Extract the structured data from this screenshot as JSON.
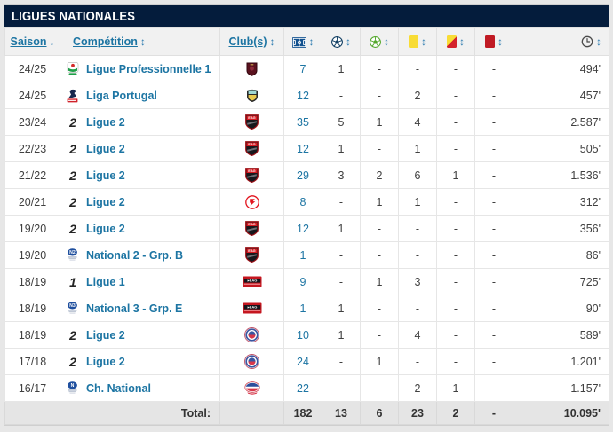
{
  "title": "LIGUES NATIONALES",
  "columns": {
    "season": {
      "label": "Saison",
      "sort": "↓"
    },
    "competition": {
      "label": "Compétition",
      "sort": "↕"
    },
    "club": {
      "label": "Club(s)",
      "sort": "↕"
    },
    "stats": [
      {
        "icon": "pitch-icon",
        "sort": "↕"
      },
      {
        "icon": "ball-navy-icon",
        "sort": "↕"
      },
      {
        "icon": "ball-green-icon",
        "sort": "↕"
      },
      {
        "icon": "yellow-card-icon",
        "sort": "↕"
      },
      {
        "icon": "yellow-red-card-icon",
        "sort": "↕"
      },
      {
        "icon": "red-card-icon",
        "sort": "↕"
      },
      {
        "icon": "clock-icon",
        "sort": "↕"
      }
    ]
  },
  "rows": [
    {
      "season": "24/25",
      "competition": "Ligue Professionnelle 1",
      "comp_logo": "ligue-professionnelle-1-logo",
      "club_crest": "club-crest-dark-red-shield",
      "matches": "7",
      "goals": "1",
      "assists": "-",
      "yellow": "-",
      "yellow_red": "-",
      "red": "-",
      "minutes": "494'"
    },
    {
      "season": "24/25",
      "competition": "Liga Portugal",
      "comp_logo": "liga-portugal-logo",
      "club_crest": "club-crest-yellow-castle",
      "matches": "12",
      "goals": "-",
      "assists": "-",
      "yellow": "2",
      "yellow_red": "-",
      "red": "-",
      "minutes": "457'"
    },
    {
      "season": "23/24",
      "competition": "Ligue 2",
      "comp_logo": "ligue-2-logo",
      "club_crest": "club-crest-eag-shield",
      "matches": "35",
      "goals": "5",
      "assists": "1",
      "yellow": "4",
      "yellow_red": "-",
      "red": "-",
      "minutes": "2.587'"
    },
    {
      "season": "22/23",
      "competition": "Ligue 2",
      "comp_logo": "ligue-2-logo",
      "club_crest": "club-crest-eag-shield",
      "matches": "12",
      "goals": "1",
      "assists": "-",
      "yellow": "1",
      "yellow_red": "-",
      "red": "-",
      "minutes": "505'"
    },
    {
      "season": "21/22",
      "competition": "Ligue 2",
      "comp_logo": "ligue-2-logo",
      "club_crest": "club-crest-eag-shield",
      "matches": "29",
      "goals": "3",
      "assists": "2",
      "yellow": "6",
      "yellow_red": "1",
      "red": "-",
      "minutes": "1.536'"
    },
    {
      "season": "20/21",
      "competition": "Ligue 2",
      "comp_logo": "ligue-2-logo",
      "club_crest": "club-crest-red-white-round",
      "matches": "8",
      "goals": "-",
      "assists": "1",
      "yellow": "1",
      "yellow_red": "-",
      "red": "-",
      "minutes": "312'"
    },
    {
      "season": "19/20",
      "competition": "Ligue 2",
      "comp_logo": "ligue-2-logo",
      "club_crest": "club-crest-eag-shield",
      "matches": "12",
      "goals": "1",
      "assists": "-",
      "yellow": "-",
      "yellow_red": "-",
      "red": "-",
      "minutes": "356'"
    },
    {
      "season": "19/20",
      "competition": "National 2 - Grp. B",
      "comp_logo": "national-2-logo",
      "club_crest": "club-crest-eag-shield",
      "matches": "1",
      "goals": "-",
      "assists": "-",
      "yellow": "-",
      "yellow_red": "-",
      "red": "-",
      "minutes": "86'"
    },
    {
      "season": "18/19",
      "competition": "Ligue 1",
      "comp_logo": "ligue-1-logo",
      "club_crest": "club-crest-eag-banner",
      "matches": "9",
      "goals": "-",
      "assists": "1",
      "yellow": "3",
      "yellow_red": "-",
      "red": "-",
      "minutes": "725'"
    },
    {
      "season": "18/19",
      "competition": "National 3 - Grp. E",
      "comp_logo": "national-3-logo",
      "club_crest": "club-crest-eag-banner",
      "matches": "1",
      "goals": "1",
      "assists": "-",
      "yellow": "-",
      "yellow_red": "-",
      "red": "-",
      "minutes": "90'"
    },
    {
      "season": "18/19",
      "competition": "Ligue 2",
      "comp_logo": "ligue-2-logo",
      "club_crest": "club-crest-blue-red-round",
      "matches": "10",
      "goals": "1",
      "assists": "-",
      "yellow": "4",
      "yellow_red": "-",
      "red": "-",
      "minutes": "589'"
    },
    {
      "season": "17/18",
      "competition": "Ligue 2",
      "comp_logo": "ligue-2-logo",
      "club_crest": "club-crest-blue-red-round",
      "matches": "24",
      "goals": "-",
      "assists": "1",
      "yellow": "-",
      "yellow_red": "-",
      "red": "-",
      "minutes": "1.201'"
    },
    {
      "season": "16/17",
      "competition": "Ch. National",
      "comp_logo": "championnat-national-logo",
      "club_crest": "club-crest-blue-red-oval",
      "matches": "22",
      "goals": "-",
      "assists": "-",
      "yellow": "2",
      "yellow_red": "1",
      "red": "-",
      "minutes": "1.157'"
    }
  ],
  "total": {
    "label": "Total:",
    "matches": "182",
    "goals": "13",
    "assists": "6",
    "yellow": "23",
    "yellow_red": "2",
    "red": "-",
    "minutes": "10.095'"
  },
  "colors": {
    "title_bar": "#041c3c",
    "link": "#1d75a3",
    "header_bg": "#f1f1f1",
    "total_row_bg": "#e5e5e5",
    "yellow_card": "#f8dc35",
    "red_card": "#c01a24",
    "page_bg": "#e7e7e7"
  }
}
